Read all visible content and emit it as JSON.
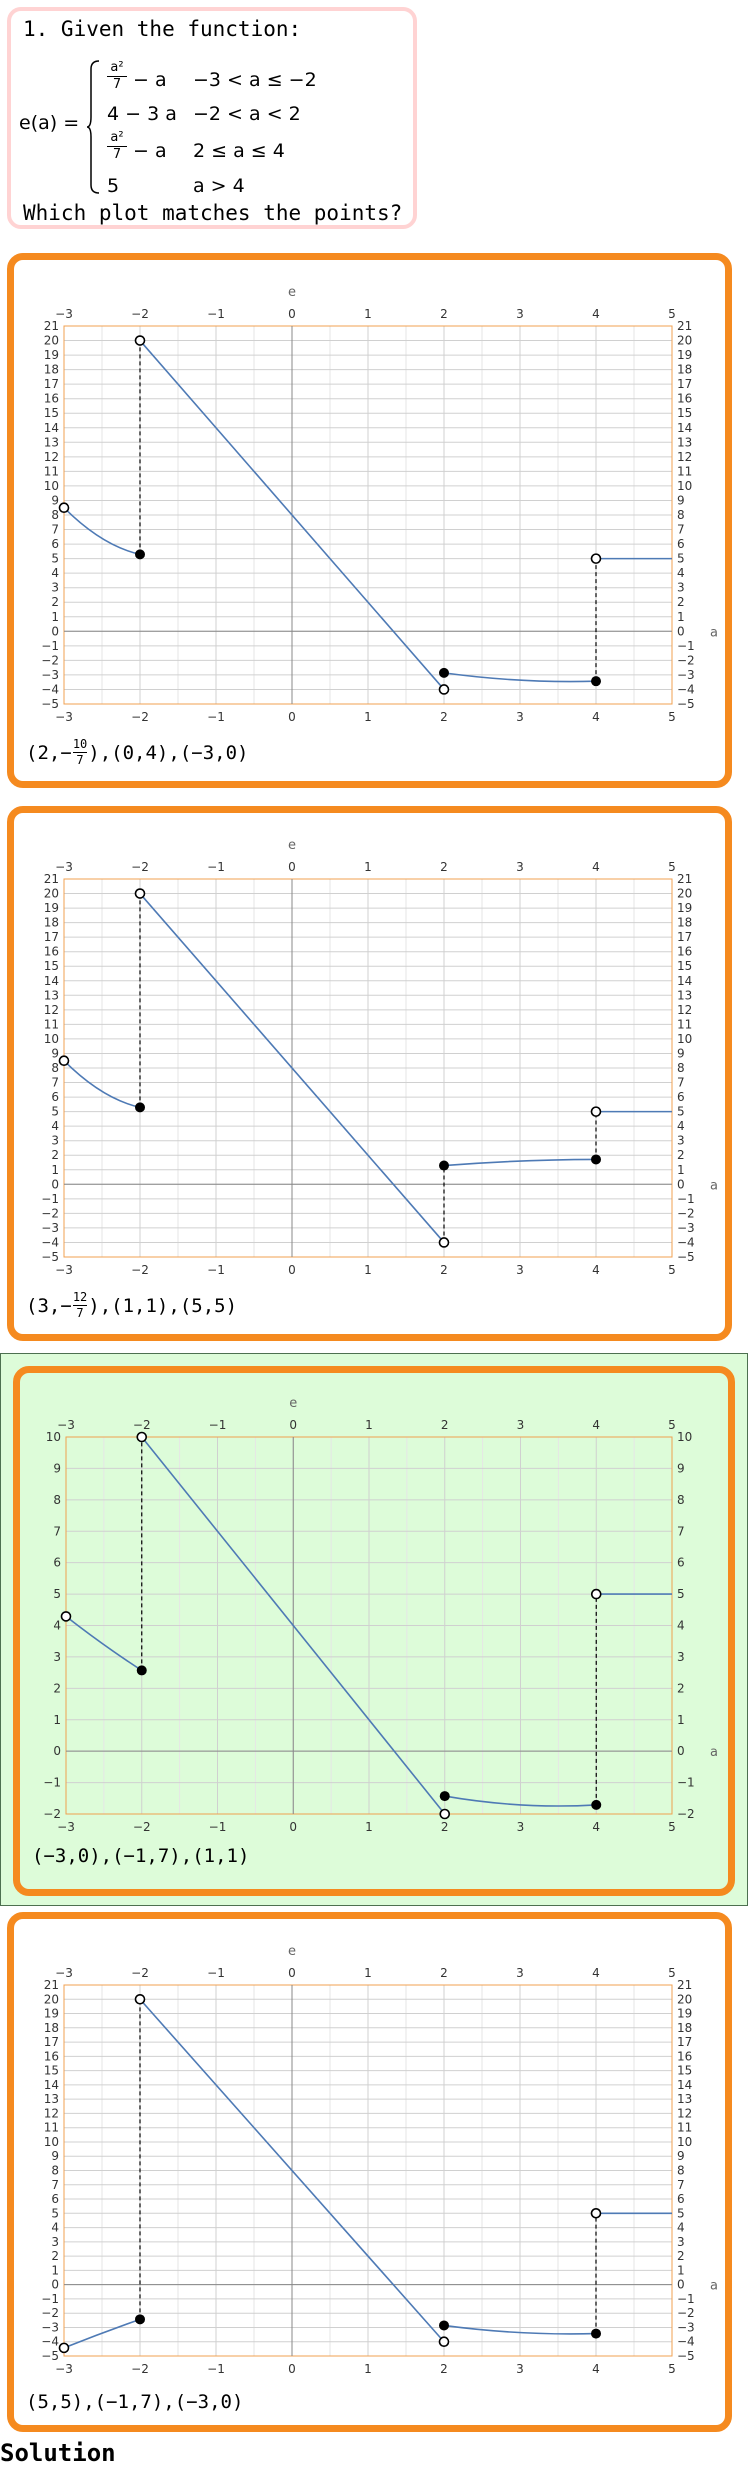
{
  "question": {
    "prompt": "1. Given the function:",
    "function_name": "e(a) =",
    "cases": [
      {
        "expr_frac_num": "a²",
        "expr_frac_den": "7",
        "expr_rest": "− a",
        "condition": "−3 < a ≤ −2"
      },
      {
        "expr": "4 − 3 a",
        "condition": "−2 < a < 2"
      },
      {
        "expr_frac_num": "a²",
        "expr_frac_den": "7",
        "expr_rest": "− a",
        "condition": "2 ≤ a ≤ 4"
      },
      {
        "expr": "5",
        "condition": "a > 4"
      }
    ],
    "ask": "Which plot matches the points?"
  },
  "options": [
    {
      "points": [
        {
          "open": "(",
          "x": "2",
          "sep": ",",
          "y_sign": "−",
          "y_num": "10",
          "y_den": "7",
          "close": ")"
        },
        {
          "text": "(0,4)"
        },
        {
          "text": "(−3,0)"
        }
      ],
      "selected": false
    },
    {
      "points": [
        {
          "open": "(",
          "x": "3",
          "sep": ",",
          "y_sign": "−",
          "y_num": "12",
          "y_den": "7",
          "close": ")"
        },
        {
          "text": "(1,1)"
        },
        {
          "text": "(5,5)"
        }
      ],
      "selected": false
    },
    {
      "points": [
        {
          "text": "(−3,0)"
        },
        {
          "text": "(−1,7)"
        },
        {
          "text": "(1,1)"
        }
      ],
      "selected": true
    },
    {
      "points": [
        {
          "text": "(5,5)"
        },
        {
          "text": "(−1,7)"
        },
        {
          "text": "(−3,0)"
        }
      ],
      "selected": false
    }
  ],
  "solution_label": "Solution",
  "chart_data": [
    {
      "type": "line",
      "xlabel": "a",
      "ylabel": "e",
      "xlim": [
        -3,
        5
      ],
      "ylim": [
        -5,
        21
      ],
      "xticks": [
        -3,
        -2,
        -1,
        0,
        1,
        2,
        3,
        4,
        5
      ],
      "yticks": [
        -5,
        -4,
        -3,
        -2,
        -1,
        0,
        1,
        2,
        3,
        4,
        5,
        6,
        7,
        8,
        9,
        10,
        11,
        12,
        13,
        14,
        15,
        16,
        17,
        18,
        19,
        20,
        21
      ],
      "grid": true,
      "series": [
        {
          "kind": "curve",
          "x": [
            -3,
            -2.5,
            -2
          ],
          "y": [
            8.5,
            6.39,
            5.29
          ]
        },
        {
          "kind": "line",
          "x": [
            -2,
            2
          ],
          "y": [
            20,
            -4
          ]
        },
        {
          "kind": "curve",
          "x": [
            2,
            3,
            4
          ],
          "y": [
            -2.86,
            -3.36,
            -3.43
          ]
        },
        {
          "kind": "line",
          "x": [
            4,
            5
          ],
          "y": [
            5,
            5
          ]
        }
      ],
      "jumps": [
        {
          "x": -2,
          "y_from": 5.29,
          "y_to": 20
        },
        {
          "x": 4,
          "y_from": -3.43,
          "y_to": 5
        }
      ],
      "open_points": [
        [
          -3,
          8.5
        ],
        [
          -2,
          20
        ],
        [
          2,
          -4
        ],
        [
          4,
          5
        ]
      ],
      "closed_points": [
        [
          -2,
          5.29
        ],
        [
          2,
          -2.86
        ],
        [
          4,
          -3.43
        ]
      ]
    },
    {
      "type": "line",
      "xlabel": "a",
      "ylabel": "e",
      "xlim": [
        -3,
        5
      ],
      "ylim": [
        -5,
        21
      ],
      "xticks": [
        -3,
        -2,
        -1,
        0,
        1,
        2,
        3,
        4,
        5
      ],
      "yticks": [
        -5,
        -4,
        -3,
        -2,
        -1,
        0,
        1,
        2,
        3,
        4,
        5,
        6,
        7,
        8,
        9,
        10,
        11,
        12,
        13,
        14,
        15,
        16,
        17,
        18,
        19,
        20,
        21
      ],
      "grid": true,
      "series": [
        {
          "kind": "curve",
          "x": [
            -3,
            -2.5,
            -2
          ],
          "y": [
            8.5,
            6.39,
            5.29
          ]
        },
        {
          "kind": "line",
          "x": [
            -2,
            2
          ],
          "y": [
            20,
            -4
          ]
        },
        {
          "kind": "curve",
          "x": [
            2,
            3,
            4
          ],
          "y": [
            1.29,
            1.6,
            1.71
          ]
        },
        {
          "kind": "line",
          "x": [
            4,
            5
          ],
          "y": [
            5,
            5
          ]
        }
      ],
      "jumps": [
        {
          "x": -2,
          "y_from": 5.29,
          "y_to": 20
        },
        {
          "x": 2,
          "y_from": -4,
          "y_to": 1.29
        },
        {
          "x": 4,
          "y_from": 1.71,
          "y_to": 5
        }
      ],
      "open_points": [
        [
          -3,
          8.5
        ],
        [
          -2,
          20
        ],
        [
          2,
          -4
        ],
        [
          4,
          5
        ]
      ],
      "closed_points": [
        [
          -2,
          5.29
        ],
        [
          2,
          1.29
        ],
        [
          4,
          1.71
        ]
      ]
    },
    {
      "type": "line",
      "xlabel": "a",
      "ylabel": "e",
      "xlim": [
        -3,
        5
      ],
      "ylim": [
        -2,
        10
      ],
      "xticks": [
        -3,
        -2,
        -1,
        0,
        1,
        2,
        3,
        4,
        5
      ],
      "yticks": [
        -2,
        -1,
        0,
        1,
        2,
        3,
        4,
        5,
        6,
        7,
        8,
        9,
        10
      ],
      "grid": true,
      "series": [
        {
          "kind": "curve",
          "x": [
            -3,
            -2.5,
            -2
          ],
          "y": [
            4.29,
            3.39,
            2.57
          ]
        },
        {
          "kind": "line",
          "x": [
            -2,
            2
          ],
          "y": [
            10,
            -2
          ]
        },
        {
          "kind": "curve",
          "x": [
            2,
            3,
            4
          ],
          "y": [
            -1.43,
            -1.71,
            -1.71
          ]
        },
        {
          "kind": "line",
          "x": [
            4,
            5
          ],
          "y": [
            5,
            5
          ]
        }
      ],
      "jumps": [
        {
          "x": -2,
          "y_from": 2.57,
          "y_to": 10
        },
        {
          "x": 4,
          "y_from": -1.71,
          "y_to": 5
        }
      ],
      "open_points": [
        [
          -3,
          4.29
        ],
        [
          -2,
          10
        ],
        [
          2,
          -2
        ],
        [
          4,
          5
        ]
      ],
      "closed_points": [
        [
          -2,
          2.57
        ],
        [
          2,
          -1.43
        ],
        [
          4,
          -1.71
        ]
      ]
    },
    {
      "type": "line",
      "xlabel": "a",
      "ylabel": "e",
      "xlim": [
        -3,
        5
      ],
      "ylim": [
        -5,
        21
      ],
      "xticks": [
        -3,
        -2,
        -1,
        0,
        1,
        2,
        3,
        4,
        5
      ],
      "yticks": [
        -5,
        -4,
        -3,
        -2,
        -1,
        0,
        1,
        2,
        3,
        4,
        5,
        6,
        7,
        8,
        9,
        10,
        11,
        12,
        13,
        14,
        15,
        16,
        17,
        18,
        19,
        20,
        21
      ],
      "grid": true,
      "series": [
        {
          "kind": "curve",
          "x": [
            -3,
            -2.5,
            -2
          ],
          "y": [
            -4.43,
            -3.4,
            -2.43
          ]
        },
        {
          "kind": "line",
          "x": [
            -2,
            2
          ],
          "y": [
            20,
            -4
          ]
        },
        {
          "kind": "curve",
          "x": [
            2,
            3,
            4
          ],
          "y": [
            -2.86,
            -3.36,
            -3.43
          ]
        },
        {
          "kind": "line",
          "x": [
            4,
            5
          ],
          "y": [
            5,
            5
          ]
        }
      ],
      "jumps": [
        {
          "x": -2,
          "y_from": -2.43,
          "y_to": 20
        },
        {
          "x": 4,
          "y_from": -3.43,
          "y_to": 5
        }
      ],
      "open_points": [
        [
          -3,
          -4.43
        ],
        [
          -2,
          20
        ],
        [
          2,
          -4
        ],
        [
          4,
          5
        ]
      ],
      "closed_points": [
        [
          -2,
          -2.43
        ],
        [
          2,
          -2.86
        ],
        [
          4,
          -3.43
        ]
      ]
    }
  ]
}
